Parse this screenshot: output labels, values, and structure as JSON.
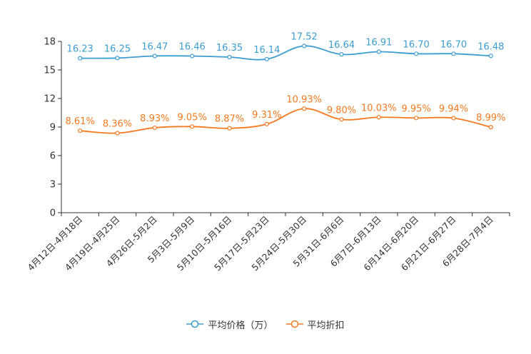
{
  "chart_data": {
    "type": "line",
    "categories": [
      "4月12日-4月18日",
      "4月19日-4月25日",
      "4月26日-5月2日",
      "5月3日-5月9日",
      "5月10日-5月16日",
      "5月17日-5月23日",
      "5月24日-5月30日",
      "5月31日-6月6日",
      "6月7日-6月13日",
      "6月14日-6月20日",
      "6月21日-6月27日",
      "6月28日-7月4日"
    ],
    "series": [
      {
        "name": "平均价格（万）",
        "color": "#3c9dd0",
        "values": [
          16.23,
          16.25,
          16.47,
          16.46,
          16.35,
          16.14,
          17.52,
          16.64,
          16.91,
          16.7,
          16.7,
          16.48
        ],
        "labels": [
          "16.23",
          "16.25",
          "16.47",
          "16.46",
          "16.35",
          "16.14",
          "17.52",
          "16.64",
          "16.91",
          "16.70",
          "16.70",
          "16.48"
        ]
      },
      {
        "name": "平均折扣",
        "color": "#f47a20",
        "values": [
          8.61,
          8.36,
          8.93,
          9.05,
          8.87,
          9.31,
          10.93,
          9.8,
          10.03,
          9.95,
          9.94,
          8.99
        ],
        "labels": [
          "8.61%",
          "8.36%",
          "8.93%",
          "9.05%",
          "8.87%",
          "9.31%",
          "10.93%",
          "9.80%",
          "10.03%",
          "9.95%",
          "9.94%",
          "8.99%"
        ]
      }
    ],
    "yticks": [
      0,
      3,
      6,
      9,
      12,
      15,
      18
    ],
    "ylim": [
      0,
      18
    ],
    "title": "",
    "xlabel": "",
    "ylabel": "",
    "legend_position": "bottom-center",
    "grid": false
  }
}
